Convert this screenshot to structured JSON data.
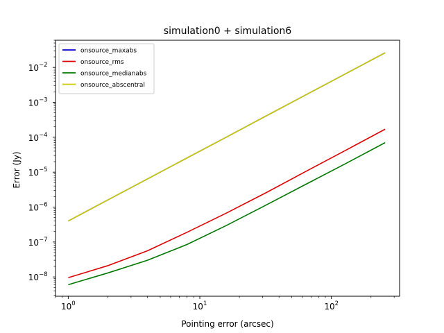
{
  "chart_data": {
    "type": "line",
    "title": "simulation0 + simulation6",
    "xlabel": "Pointing error (arcsec)",
    "ylabel": "Error (Jy)",
    "xscale": "log",
    "yscale": "log",
    "xlim": [
      0.8,
      330
    ],
    "ylim": [
      2.8e-09,
      0.06
    ],
    "grid": false,
    "legend_position": "top-left",
    "x": [
      1,
      2,
      4,
      8,
      16,
      32,
      64,
      128,
      256
    ],
    "xticks": [
      {
        "value": 1,
        "base": "10",
        "exp": "0"
      },
      {
        "value": 10,
        "base": "10",
        "exp": "1"
      },
      {
        "value": 100,
        "base": "10",
        "exp": "2"
      }
    ],
    "yticks": [
      {
        "value": 1e-08,
        "base": "10",
        "exp": "−8"
      },
      {
        "value": 1e-07,
        "base": "10",
        "exp": "−7"
      },
      {
        "value": 1e-06,
        "base": "10",
        "exp": "−6"
      },
      {
        "value": 1e-05,
        "base": "10",
        "exp": "−5"
      },
      {
        "value": 0.0001,
        "base": "10",
        "exp": "−4"
      },
      {
        "value": 0.001,
        "base": "10",
        "exp": "−3"
      },
      {
        "value": 0.01,
        "base": "10",
        "exp": "−2"
      }
    ],
    "series": [
      {
        "name": "onsource_maxabs",
        "color": "#0000cc",
        "values": [
          4e-07,
          1.6e-06,
          6.4e-06,
          2.56e-05,
          0.000102,
          0.00041,
          0.00164,
          0.00655,
          0.0262
        ]
      },
      {
        "name": "onsource_rms",
        "color": "#dd0000",
        "values": [
          9.5e-09,
          2.1e-08,
          5.6e-08,
          1.9e-07,
          6.8e-07,
          2.6e-06,
          1.05e-05,
          4.2e-05,
          0.00017
        ]
      },
      {
        "name": "onsource_medianabs",
        "color": "#007700",
        "values": [
          6e-09,
          1.3e-08,
          3e-08,
          8.5e-08,
          3e-07,
          1.15e-06,
          4.5e-06,
          1.75e-05,
          7e-05
        ]
      },
      {
        "name": "onsource_abscentral",
        "color": "#cccc00",
        "values": [
          4e-07,
          1.6e-06,
          6.4e-06,
          2.56e-05,
          0.000102,
          0.00041,
          0.00164,
          0.00655,
          0.0262
        ]
      }
    ]
  }
}
